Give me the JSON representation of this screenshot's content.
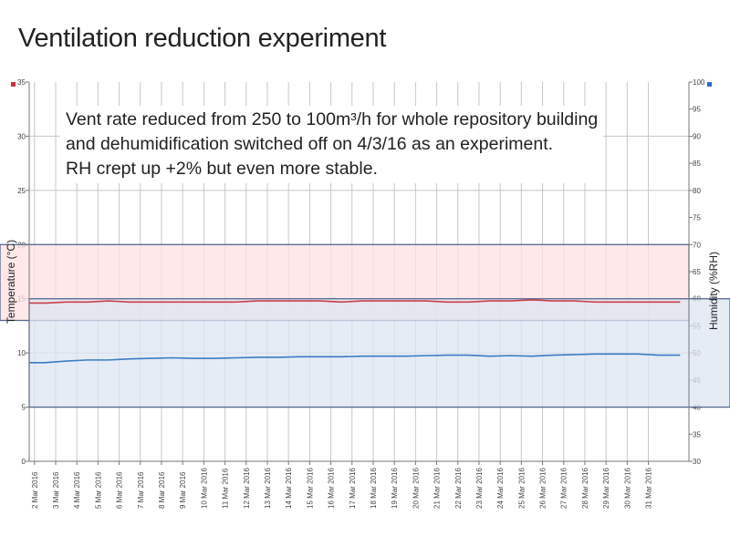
{
  "slide": {
    "title": "Ventilation reduction experiment",
    "note_lines": [
      "Vent rate reduced from 250 to 100m³/h for whole repository building",
      "and dehumidification switched off on 4/3/16 as an experiment.",
      "RH crept up +2% but even more stable."
    ]
  },
  "chart_data": {
    "type": "line",
    "xlim": [
      "2016-03-01T18:00",
      "2016-04-01T22:00"
    ],
    "x_tick_labels": [
      "2 Mar 2016",
      "3 Mar 2016",
      "4 Mar 2016",
      "5 Mar 2016",
      "6 Mar 2016",
      "7 Mar 2016",
      "8 Mar 2016",
      "9 Mar 2016",
      "10 Mar 2016",
      "11 Mar 2016",
      "12 Mar 2016",
      "13 Mar 2016",
      "14 Mar 2016",
      "15 Mar 2016",
      "16 Mar 2016",
      "17 Mar 2016",
      "18 Mar 2016",
      "19 Mar 2016",
      "20 Mar 2016",
      "21 Mar 2016",
      "22 Mar 2016",
      "23 Mar 2016",
      "24 Mar 2016",
      "25 Mar 2016",
      "26 Mar 2016",
      "27 Mar 2016",
      "28 Mar 2016",
      "29 Mar 2016",
      "30 Mar 2016",
      "31 Mar 2016"
    ],
    "y_left": {
      "label": "Temperature (°C)",
      "lim": [
        0,
        35
      ],
      "ticks": [
        0,
        5,
        10,
        15,
        20,
        25,
        30,
        35
      ]
    },
    "y_right": {
      "label": "Humidity (%RH)",
      "lim": [
        30,
        100
      ],
      "ticks": [
        30,
        35,
        40,
        45,
        50,
        55,
        60,
        65,
        70,
        75,
        80,
        85,
        90,
        95,
        100
      ]
    },
    "grid": true,
    "bands": [
      {
        "axis": "left",
        "from": 13,
        "to": 20,
        "color": "#fde0e2"
      },
      {
        "axis": "right",
        "from": 40,
        "to": 60,
        "color": "#dde6f2"
      }
    ],
    "series": [
      {
        "axis": "left",
        "color": "#c8414b",
        "x": [
          "2016-03-02",
          "2016-03-03",
          "2016-03-04",
          "2016-03-05",
          "2016-03-06",
          "2016-03-07",
          "2016-03-08",
          "2016-03-09",
          "2016-03-10",
          "2016-03-11",
          "2016-03-12",
          "2016-03-13",
          "2016-03-14",
          "2016-03-15",
          "2016-03-16",
          "2016-03-17",
          "2016-03-18",
          "2016-03-19",
          "2016-03-20",
          "2016-03-21",
          "2016-03-22",
          "2016-03-23",
          "2016-03-24",
          "2016-03-25",
          "2016-03-26",
          "2016-03-27",
          "2016-03-28",
          "2016-03-29",
          "2016-03-30",
          "2016-03-31",
          "2016-04-01"
        ],
        "values": [
          14.6,
          14.7,
          14.7,
          14.8,
          14.7,
          14.7,
          14.7,
          14.7,
          14.7,
          14.7,
          14.8,
          14.8,
          14.8,
          14.8,
          14.7,
          14.8,
          14.8,
          14.8,
          14.8,
          14.7,
          14.7,
          14.8,
          14.8,
          14.9,
          14.8,
          14.8,
          14.7,
          14.7,
          14.7,
          14.7,
          14.7
        ]
      },
      {
        "axis": "right",
        "color": "#3b7bc4",
        "x": [
          "2016-03-02",
          "2016-03-03",
          "2016-03-04",
          "2016-03-05",
          "2016-03-06",
          "2016-03-07",
          "2016-03-08",
          "2016-03-09",
          "2016-03-10",
          "2016-03-11",
          "2016-03-12",
          "2016-03-13",
          "2016-03-14",
          "2016-03-15",
          "2016-03-16",
          "2016-03-17",
          "2016-03-18",
          "2016-03-19",
          "2016-03-20",
          "2016-03-21",
          "2016-03-22",
          "2016-03-23",
          "2016-03-24",
          "2016-03-25",
          "2016-03-26",
          "2016-03-27",
          "2016-03-28",
          "2016-03-29",
          "2016-03-30",
          "2016-03-31",
          "2016-04-01"
        ],
        "values": [
          48.2,
          48.5,
          48.7,
          48.7,
          48.9,
          49.0,
          49.1,
          49.0,
          49.0,
          49.1,
          49.2,
          49.2,
          49.3,
          49.3,
          49.3,
          49.4,
          49.4,
          49.4,
          49.5,
          49.6,
          49.6,
          49.4,
          49.5,
          49.4,
          49.6,
          49.7,
          49.8,
          49.8,
          49.8,
          49.6,
          49.6
        ]
      }
    ],
    "legend_markers": {
      "temperature": "#d0303a",
      "humidity": "#2c6cc8"
    }
  }
}
